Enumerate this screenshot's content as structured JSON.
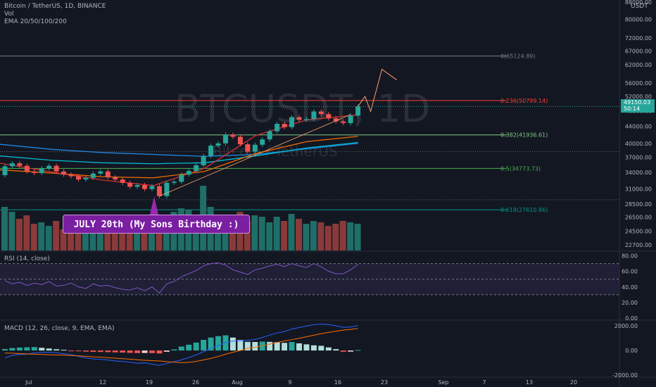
{
  "header": {
    "symbol_line": "Bitcoin / TetherUS, 1D, BINANCE",
    "vol_label": "Vol",
    "ema_label": "EMA 20/50/100/200"
  },
  "watermark": {
    "ticker": "BTCUSDT, 1D",
    "name": "Bitcoin / TetherUS"
  },
  "currency": "USDT",
  "price_tag": {
    "price": "49150.03",
    "countdown": "50:14"
  },
  "callout": {
    "text": "JULY 20th (My Sons Birthday :)"
  },
  "rsi": {
    "label": "RSI (14, close)"
  },
  "macd": {
    "label": "MACD (12, 26, close, 9, EMA, EMA)"
  },
  "colors": {
    "up": "#26a69a",
    "down": "#ef5350",
    "fib_0": "#787b86",
    "fib_236": "#f44336",
    "fib_382": "#81c784",
    "fib_5": "#4caf50",
    "fib_618": "#009688",
    "callout": "#7b1fa2",
    "projection": "#f7a26b"
  },
  "chart_data": [
    {
      "type": "candlestick",
      "title": "Bitcoin / TetherUS, 1D, BINANCE",
      "scale": "log",
      "ylim": [
        22000,
        88000
      ],
      "y_ticks": [
        "88000.00",
        "80000.00",
        "72000.00",
        "67000.00",
        "62000.00",
        "56000.00",
        "52000.00",
        "48000.00",
        "44000.00",
        "40000.00",
        "37000.00",
        "34000.00",
        "31000.00",
        "28500.00",
        "26500.00",
        "24500.00",
        "22700.00"
      ],
      "x_ticks": [
        "Jul",
        "12",
        "19",
        "26",
        "Aug",
        "9",
        "16",
        "23",
        "Sep",
        "7",
        "13",
        "20"
      ],
      "candles": [
        {
          "o": 33500,
          "c": 35200
        },
        {
          "o": 35200,
          "c": 35800
        },
        {
          "o": 35800,
          "c": 35300
        },
        {
          "o": 35300,
          "c": 34200
        },
        {
          "o": 34200,
          "c": 33900
        },
        {
          "o": 33900,
          "c": 34800
        },
        {
          "o": 34800,
          "c": 35300
        },
        {
          "o": 35300,
          "c": 34200
        },
        {
          "o": 34200,
          "c": 33600
        },
        {
          "o": 33600,
          "c": 33300
        },
        {
          "o": 33300,
          "c": 32700
        },
        {
          "o": 32700,
          "c": 33000
        },
        {
          "o": 33000,
          "c": 33800
        },
        {
          "o": 33800,
          "c": 34200
        },
        {
          "o": 34200,
          "c": 33100
        },
        {
          "o": 33100,
          "c": 32700
        },
        {
          "o": 32700,
          "c": 32100
        },
        {
          "o": 32100,
          "c": 31400
        },
        {
          "o": 31400,
          "c": 31700
        },
        {
          "o": 31700,
          "c": 31000
        },
        {
          "o": 31000,
          "c": 31500
        },
        {
          "o": 31500,
          "c": 29800
        },
        {
          "o": 29800,
          "c": 32100
        },
        {
          "o": 32100,
          "c": 32300
        },
        {
          "o": 32300,
          "c": 33600
        },
        {
          "o": 33600,
          "c": 34300
        },
        {
          "o": 34300,
          "c": 35400
        },
        {
          "o": 35400,
          "c": 37300
        },
        {
          "o": 37300,
          "c": 39500
        },
        {
          "o": 39500,
          "c": 40000
        },
        {
          "o": 40000,
          "c": 42000
        },
        {
          "o": 42000,
          "c": 41500
        },
        {
          "o": 41500,
          "c": 39800
        },
        {
          "o": 39800,
          "c": 38200
        },
        {
          "o": 38200,
          "c": 39700
        },
        {
          "o": 39700,
          "c": 40900
        },
        {
          "o": 40900,
          "c": 42800
        },
        {
          "o": 42800,
          "c": 44600
        },
        {
          "o": 44600,
          "c": 43800
        },
        {
          "o": 43800,
          "c": 46300
        },
        {
          "o": 46300,
          "c": 45600
        },
        {
          "o": 45600,
          "c": 45800
        },
        {
          "o": 45800,
          "c": 47800
        },
        {
          "o": 47800,
          "c": 47100
        },
        {
          "o": 47100,
          "c": 46000
        },
        {
          "o": 46000,
          "c": 45200
        },
        {
          "o": 45200,
          "c": 44800
        },
        {
          "o": 44800,
          "c": 46700
        },
        {
          "o": 46700,
          "c": 49150
        }
      ],
      "volume": [
        62,
        55,
        45,
        50,
        38,
        40,
        35,
        42,
        30,
        45,
        48,
        38,
        30,
        25,
        28,
        35,
        32,
        30,
        40,
        28,
        35,
        45,
        50,
        55,
        60,
        58,
        45,
        92,
        62,
        40,
        35,
        38,
        55,
        42,
        50,
        48,
        40,
        48,
        42,
        52,
        45,
        38,
        42,
        40,
        35,
        38,
        42,
        40,
        38
      ],
      "ema_20": [
        35800,
        34100,
        32600,
        31600,
        34800,
        41800,
        45600,
        46900
      ],
      "ema_50": [
        34500,
        33900,
        33200,
        33000,
        34200,
        37800,
        40400,
        41600
      ],
      "ema_100": [
        37300,
        36400,
        35900,
        35700,
        35900,
        37300,
        39000,
        40200
      ],
      "ema_200": [
        39800,
        38700,
        38000,
        37600,
        37200,
        37600,
        38800,
        40000
      ],
      "trend_line": [
        [
          29800,
          21
        ],
        [
          47000,
          47
        ]
      ],
      "projection": [
        49150,
        52000,
        47800,
        60500,
        57000
      ],
      "fib_levels": [
        {
          "label": "0(65124.89)",
          "ratio": 0,
          "price": 65124.89
        },
        {
          "label": "0.236(50799.14)",
          "ratio": 0.236,
          "price": 50799.14
        },
        {
          "label": "0.382(41936.61)",
          "ratio": 0.382,
          "price": 41936.61
        },
        {
          "label": "0.5(34773.73)",
          "ratio": 0.5,
          "price": 34773.73
        },
        {
          "label": "0.618(27610.86)",
          "ratio": 0.618,
          "price": 27610.86
        }
      ],
      "annotations": [
        "JULY 20th (My Sons Birthday :)"
      ]
    },
    {
      "type": "line",
      "title": "RSI (14, close)",
      "ylim": [
        0,
        85
      ],
      "y_ticks": [
        "80.00",
        "60.00",
        "40.00",
        "20.00",
        "0.00"
      ],
      "bands": [
        30,
        50,
        70
      ],
      "values": [
        48,
        44,
        46,
        42,
        45,
        43,
        47,
        41,
        42,
        45,
        40,
        38,
        44,
        41,
        42,
        39,
        37,
        36,
        39,
        35,
        40,
        32,
        44,
        47,
        53,
        57,
        61,
        67,
        70,
        71,
        68,
        62,
        59,
        56,
        62,
        64,
        67,
        69,
        66,
        70,
        67,
        65,
        70,
        66,
        60,
        57,
        57,
        62,
        69
      ]
    },
    {
      "type": "line",
      "title": "MACD (12, 26, close, 9, EMA, EMA)",
      "ylim": [
        -2100,
        2400
      ],
      "y_ticks": [
        "2000.00",
        "0.00",
        "-2000.00"
      ],
      "macd": [
        -600,
        -400,
        -320,
        -300,
        -200,
        -150,
        -140,
        -180,
        -260,
        -330,
        -480,
        -600,
        -680,
        -720,
        -770,
        -850,
        -880,
        -950,
        -1030,
        -1000,
        -1100,
        -1200,
        -1050,
        -900,
        -760,
        -560,
        -360,
        -100,
        160,
        400,
        640,
        760,
        790,
        820,
        900,
        1050,
        1250,
        1420,
        1530,
        1740,
        1860,
        1980,
        2100,
        2140,
        2100,
        2000,
        1880,
        1900,
        2020
      ],
      "signal": [
        -200,
        -220,
        -250,
        -280,
        -300,
        -320,
        -340,
        -360,
        -380,
        -410,
        -430,
        -470,
        -510,
        -540,
        -580,
        -620,
        -660,
        -700,
        -750,
        -790,
        -820,
        -850,
        -900,
        -950,
        -980,
        -960,
        -880,
        -760,
        -640,
        -480,
        -300,
        -140,
        0,
        160,
        260,
        380,
        520,
        650,
        770,
        880,
        990,
        1110,
        1240,
        1360,
        1470,
        1560,
        1650,
        1710,
        1780
      ],
      "histogram": [
        120,
        200,
        240,
        260,
        280,
        220,
        160,
        100,
        60,
        -20,
        -60,
        -90,
        -110,
        -120,
        -130,
        -150,
        -170,
        -190,
        -210,
        -200,
        -210,
        -240,
        -100,
        90,
        320,
        470,
        640,
        860,
        1050,
        1160,
        1230,
        1050,
        860,
        700,
        690,
        720,
        700,
        680,
        620,
        690,
        580,
        500,
        420,
        380,
        250,
        110,
        -100,
        -90,
        40
      ]
    }
  ]
}
